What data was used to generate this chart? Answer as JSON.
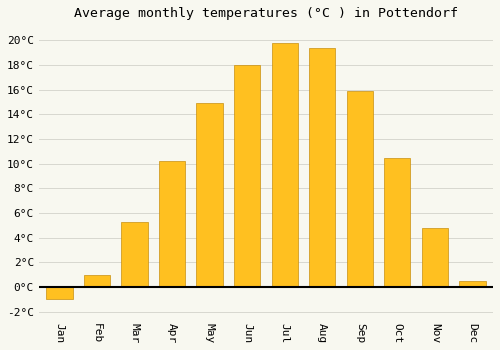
{
  "title": "Average monthly temperatures (°C ) in Pottendorf",
  "months": [
    "Jan",
    "Feb",
    "Mar",
    "Apr",
    "May",
    "Jun",
    "Jul",
    "Aug",
    "Sep",
    "Oct",
    "Nov",
    "Dec"
  ],
  "values": [
    -1.0,
    1.0,
    5.3,
    10.2,
    14.9,
    18.0,
    19.8,
    19.4,
    15.9,
    10.5,
    4.8,
    0.5
  ],
  "bar_color": "#FFC020",
  "bar_edge_color": "#C89010",
  "background_color": "#F8F8F0",
  "grid_color": "#D8D8D0",
  "ylim": [
    -2.5,
    21
  ],
  "yticks": [
    -2,
    0,
    2,
    4,
    6,
    8,
    10,
    12,
    14,
    16,
    18,
    20
  ],
  "title_fontsize": 9.5,
  "tick_fontsize": 8,
  "font_family": "monospace"
}
